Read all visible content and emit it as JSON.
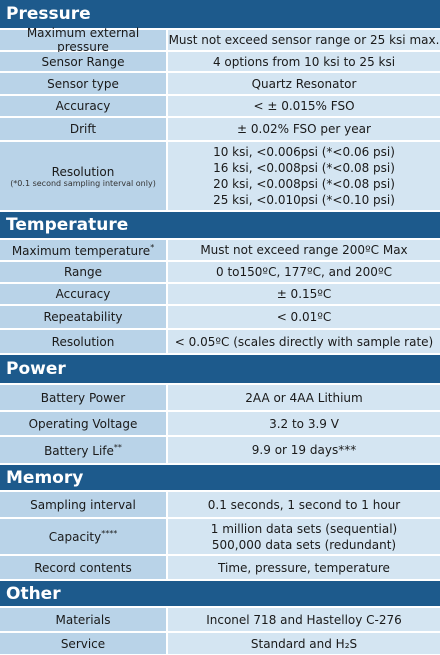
{
  "sections": [
    {
      "title": "Pressure",
      "rows": [
        {
          "label": "Maximum external pressure",
          "value": [
            "Must not exceed sensor range or 25 ksi max."
          ]
        },
        {
          "label": "Sensor Range",
          "value": [
            "4 options from 10 ksi to 25 ksi"
          ]
        },
        {
          "label": "Sensor type",
          "value": [
            "Quartz Resonator"
          ]
        },
        {
          "label": "Accuracy",
          "value": [
            "< ± 0.015% FSO"
          ]
        },
        {
          "label": "Drift",
          "value": [
            "± 0.02% FSO per year"
          ]
        },
        {
          "label": "Resolution",
          "note": "(*0.1 second sampling interval only)",
          "value": [
            "10 ksi, <0.006psi (*<0.06 psi)",
            "16 ksi, <0.008psi (*<0.08 psi)",
            "20 ksi, <0.008psi (*<0.08 psi)",
            "25 ksi, <0.010psi (*<0.10 psi)"
          ]
        }
      ]
    },
    {
      "title": "Temperature",
      "rows": [
        {
          "label": "Maximum temperature",
          "sup": "*",
          "value": [
            "Must not exceed range 200ºC Max"
          ]
        },
        {
          "label": "Range",
          "value": [
            "0 to150ºC, 177ºC, and 200ºC"
          ]
        },
        {
          "label": "Accuracy",
          "value": [
            "± 0.15ºC"
          ]
        },
        {
          "label": "Repeatability",
          "value": [
            "< 0.01ºC"
          ]
        },
        {
          "label": "Resolution",
          "value": [
            "< 0.05ºC (scales directly with sample rate)"
          ]
        }
      ]
    },
    {
      "title": "Power",
      "rows": [
        {
          "label": "Battery Power",
          "value": [
            "2AA or 4AA Lithium"
          ]
        },
        {
          "label": "Operating Voltage",
          "value": [
            "3.2 to 3.9 V"
          ]
        },
        {
          "label": "Battery Life",
          "sup": "**",
          "value": [
            "9.9 or 19 days***"
          ]
        }
      ]
    },
    {
      "title": "Memory",
      "rows": [
        {
          "label": "Sampling interval",
          "value": [
            "0.1 seconds, 1 second to 1 hour"
          ]
        },
        {
          "label": "Capacity",
          "sup": "****",
          "value": [
            "1 million data sets (sequential)",
            "500,000 data sets (redundant)"
          ]
        },
        {
          "label": "Record contents",
          "value": [
            "Time, pressure, temperature"
          ]
        }
      ]
    },
    {
      "title": "Other",
      "rows": [
        {
          "label": "Materials",
          "value": [
            "Inconel 718 and Hastelloy C-276"
          ]
        },
        {
          "label": "Service",
          "value": [
            "Standard and H₂S"
          ]
        }
      ]
    }
  ]
}
